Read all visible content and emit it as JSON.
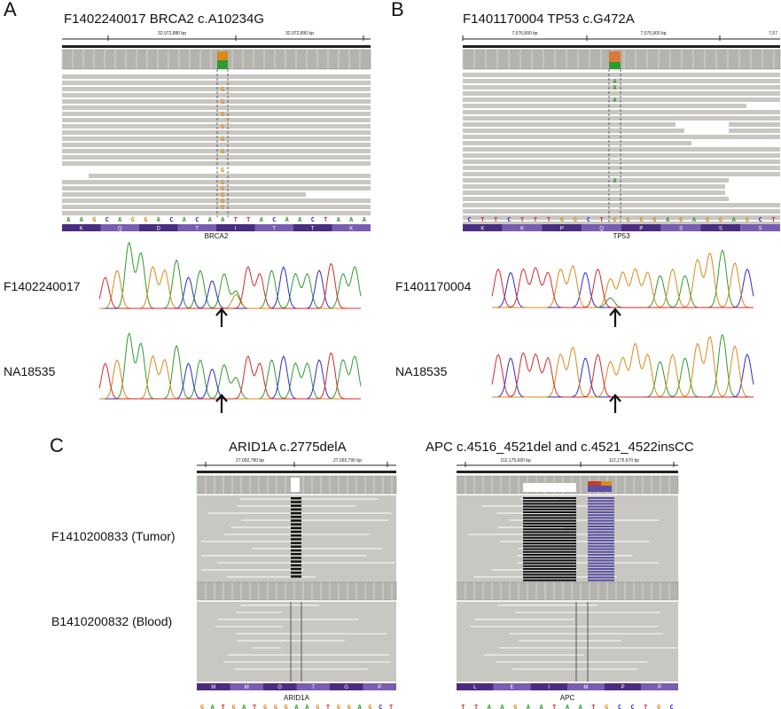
{
  "panels": {
    "A": {
      "letter": "A",
      "title": "F1402240017 BRCA2 c.A10234G",
      "ticks": [
        "32,972,880 bp",
        "32,972,890 bp"
      ],
      "sequence": [
        "A",
        "A",
        "G",
        "C",
        "A",
        "G",
        "G",
        "A",
        "C",
        "A",
        "C",
        "A",
        "A",
        "T",
        "T",
        "A",
        "C",
        "A",
        "A",
        "C",
        "T",
        "A",
        "A",
        "A"
      ],
      "amino_acids": [
        "K",
        "Q",
        "D",
        "T",
        "I",
        "T",
        "T",
        "K"
      ],
      "gene": "BRCA2",
      "variant_base": "G",
      "traces": [
        {
          "label": "F1402240017"
        },
        {
          "label": "NA18535"
        }
      ]
    },
    "B": {
      "letter": "B",
      "title": "F1401170004 TP53 c.G472A",
      "ticks": [
        "7,576,890 bp",
        "7,576,900 bp",
        "7,57"
      ],
      "sequence": [
        "C",
        "T",
        "T",
        "C",
        "T",
        "T",
        "T",
        "G",
        "G",
        "C",
        "T",
        "G",
        "G",
        "G",
        "G",
        "A",
        "G",
        "A",
        "G",
        "G",
        "A",
        "G",
        "C",
        "T"
      ],
      "amino_acids": [
        "K",
        "K",
        "P",
        "Q",
        "P",
        "S",
        "S",
        "S"
      ],
      "gene": "TP53",
      "variant_base": "A",
      "traces": [
        {
          "label": "F1401170004"
        },
        {
          "label": "NA18535"
        }
      ]
    },
    "C": {
      "letter": "C",
      "left_title": "ARID1A c.2775delA",
      "right_title": "APC c.4516_4521del and c.4521_4522insCC",
      "left_ticks": [
        "27,092,780 bp",
        "27,092,790 bp"
      ],
      "right_ticks": [
        "112,175,660 bp",
        "112,175,670 bp"
      ],
      "row_labels": [
        "F1410200833 (Tumor)",
        "B1410200832 (Blood)"
      ],
      "left_gene": "ARID1A",
      "right_gene": "APC",
      "left_amino_acids": [
        "M",
        "M",
        "G",
        "T",
        "G",
        "P"
      ],
      "right_amino_acids": [
        "L",
        "E",
        "I",
        "M",
        "P",
        "P"
      ],
      "left_sequence": [
        "G",
        "A",
        "T",
        "G",
        "A",
        "T",
        "G",
        "G",
        "G",
        "A",
        "A",
        "G",
        "T",
        "G",
        "G",
        "A",
        "G",
        "C",
        "T"
      ],
      "right_sequence": [
        "T",
        "T",
        "A",
        "A",
        "G",
        "A",
        "A",
        "T",
        "A",
        "A",
        "T",
        "G",
        "C",
        "C",
        "T",
        "G",
        "C"
      ]
    }
  },
  "colors": {
    "A": "#2e9b2e",
    "C": "#2b2bd0",
    "G": "#d98a1a",
    "T": "#d42a2a",
    "read": "#c9c7c2",
    "coverage": "#b5b3ae",
    "aa_band": "#4b2c80",
    "aa_band_alt": "#7a5cb0",
    "ins": "#5a4fa3"
  }
}
